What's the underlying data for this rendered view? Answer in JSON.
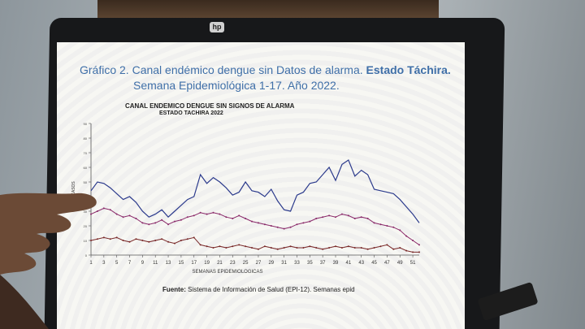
{
  "screen": {
    "title_line1_plain": "Gráfico 2. Canal endémico dengue sin Datos de alarma.",
    "title_line1_bold": "Estado Táchira.",
    "title_line2": "Semana Epidemiológica 1-17. Año 2022.",
    "chart_title": "CANAL ENDEMICO DENGUE SIN SIGNOS DE ALARMA",
    "chart_subtitle": "ESTADO TACHIRA 2022",
    "xlabel": "SEMANAS EPIDEMIOLOGICAS",
    "ylabel": "CASOS",
    "source_label": "Fuente:",
    "source_text": "Sistema de Información de Salud (EPI-12). Semanas epid"
  },
  "chart_data": {
    "type": "line",
    "xlabel": "SEMANAS EPIDEMIOLOGICAS",
    "ylabel": "CASOS",
    "ylim": [
      0,
      90
    ],
    "yticks": [
      0,
      10,
      20,
      30,
      40,
      50,
      60,
      70,
      80,
      90
    ],
    "xtick_labels": [
      "1",
      "3",
      "5",
      "7",
      "9",
      "11",
      "13",
      "15",
      "17",
      "19",
      "21",
      "23",
      "25",
      "27",
      "29",
      "31",
      "33",
      "35",
      "37",
      "39",
      "41",
      "43",
      "45",
      "47",
      "49",
      "51"
    ],
    "x": [
      1,
      2,
      3,
      4,
      5,
      6,
      7,
      8,
      9,
      10,
      11,
      12,
      13,
      14,
      15,
      16,
      17,
      18,
      19,
      20,
      21,
      22,
      23,
      24,
      25,
      26,
      27,
      28,
      29,
      30,
      31,
      32,
      33,
      34,
      35,
      36,
      37,
      38,
      39,
      40,
      41,
      42,
      43,
      44,
      45,
      46,
      47,
      48,
      49,
      50,
      51,
      52
    ],
    "series": [
      {
        "color": "#2b3a8c",
        "values": [
          44,
          50,
          49,
          46,
          42,
          38,
          40,
          36,
          30,
          26,
          28,
          31,
          26,
          30,
          34,
          38,
          40,
          55,
          49,
          53,
          50,
          46,
          41,
          43,
          50,
          44,
          43,
          40,
          45,
          37,
          31,
          30,
          41,
          43,
          49,
          50,
          55,
          60,
          51,
          62,
          65,
          54,
          58,
          55,
          45,
          44,
          43,
          42,
          38,
          33,
          28,
          22
        ]
      },
      {
        "color": "#8a2a6a",
        "values": [
          28,
          30,
          32,
          31,
          28,
          26,
          27,
          25,
          22,
          21,
          22,
          24,
          21,
          23,
          24,
          26,
          27,
          29,
          28,
          29,
          28,
          26,
          25,
          27,
          25,
          23,
          22,
          21,
          20,
          19,
          18,
          19,
          21,
          22,
          23,
          25,
          26,
          27,
          26,
          28,
          27,
          25,
          26,
          25,
          22,
          21,
          20,
          19,
          17,
          13,
          10,
          7
        ]
      },
      {
        "color": "#7a2a2a",
        "values": [
          10,
          11,
          12,
          11,
          12,
          10,
          9,
          11,
          10,
          9,
          10,
          11,
          9,
          8,
          10,
          11,
          12,
          7,
          6,
          5,
          6,
          5,
          6,
          7,
          6,
          5,
          4,
          6,
          5,
          4,
          5,
          6,
          5,
          5,
          6,
          5,
          4,
          5,
          6,
          5,
          6,
          5,
          5,
          4,
          5,
          6,
          7,
          4,
          5,
          3,
          2,
          2
        ]
      }
    ]
  },
  "colors": {
    "title": "#3f6fa8",
    "screen_bg": "#f7f7f3",
    "bezel": "#17181a"
  }
}
